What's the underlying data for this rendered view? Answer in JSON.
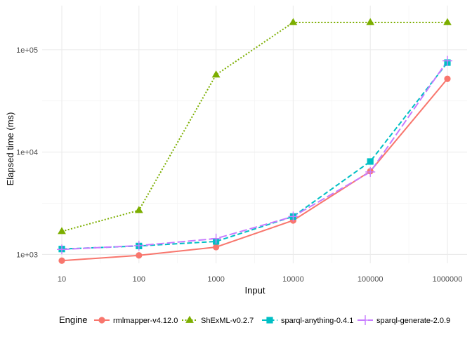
{
  "chart_data": {
    "type": "line",
    "xlabel": "Input",
    "ylabel": "Elapsed time (ms)",
    "x_scale": "log10",
    "y_scale": "log10",
    "x": [
      10,
      100,
      1000,
      10000,
      100000,
      1000000
    ],
    "x_tick_labels": [
      "10",
      "100",
      "1000",
      "10000",
      "100000",
      "1000000"
    ],
    "y_ticks": [
      1000,
      10000,
      100000
    ],
    "y_tick_labels": [
      "1e+03",
      "1e+04",
      "1e+05"
    ],
    "ylim": [
      820,
      270000
    ],
    "grid": true,
    "legend": {
      "title": "Engine",
      "position": "bottom"
    },
    "series": [
      {
        "name": "rmlmapper-v4.12.0",
        "color": "#F8766D",
        "marker": "circle",
        "dash": "solid",
        "values": [
          870,
          980,
          1180,
          2150,
          6500,
          52000
        ]
      },
      {
        "name": "ShExML-v0.2.7",
        "color": "#7CAE00",
        "marker": "triangle",
        "dash": "dotted",
        "values": [
          1680,
          2700,
          57000,
          185000,
          185000,
          185000
        ]
      },
      {
        "name": "sparql-anything-0.4.1",
        "color": "#00BFC4",
        "marker": "square",
        "dash": "dashed",
        "values": [
          1130,
          1210,
          1340,
          2350,
          8100,
          75000
        ]
      },
      {
        "name": "sparql-generate-2.0.9",
        "color": "#C77CFF",
        "marker": "plus",
        "dash": "longdash",
        "values": [
          1120,
          1220,
          1430,
          2350,
          6400,
          78000
        ]
      }
    ]
  }
}
